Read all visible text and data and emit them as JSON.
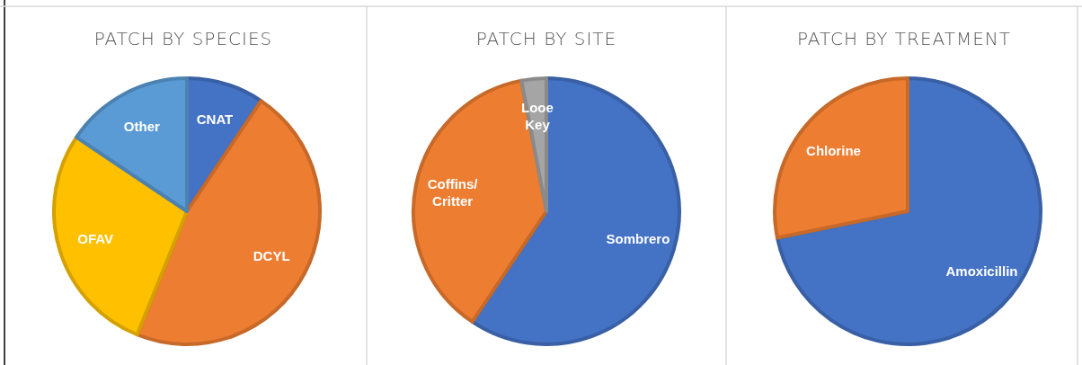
{
  "chart_data": [
    {
      "type": "pie",
      "title": "PATCH BY SPECIES",
      "categories": [
        "CNAT",
        "DCYL",
        "OFAV",
        "Other"
      ],
      "values": [
        9.4,
        46.7,
        28.3,
        15.6
      ],
      "colors": [
        "#4472c4",
        "#ed7d31",
        "#ffc000",
        "#5b9bd5"
      ],
      "data_labels": false
    },
    {
      "type": "pie",
      "title": "PATCH BY SITE",
      "categories": [
        "Sombrero",
        "Coffins/ Critter",
        "Looe Key"
      ],
      "values": [
        59.4,
        37.6,
        3.0
      ],
      "colors": [
        "#4472c4",
        "#ed7d31",
        "#a5a5a5"
      ]
    },
    {
      "type": "pie",
      "title": "PATCH BY TREATMENT",
      "categories": [
        "Amoxicillin",
        "Chlorine"
      ],
      "values": [
        71.8,
        28.2
      ],
      "colors": [
        "#4472c4",
        "#ed7d31"
      ]
    }
  ]
}
